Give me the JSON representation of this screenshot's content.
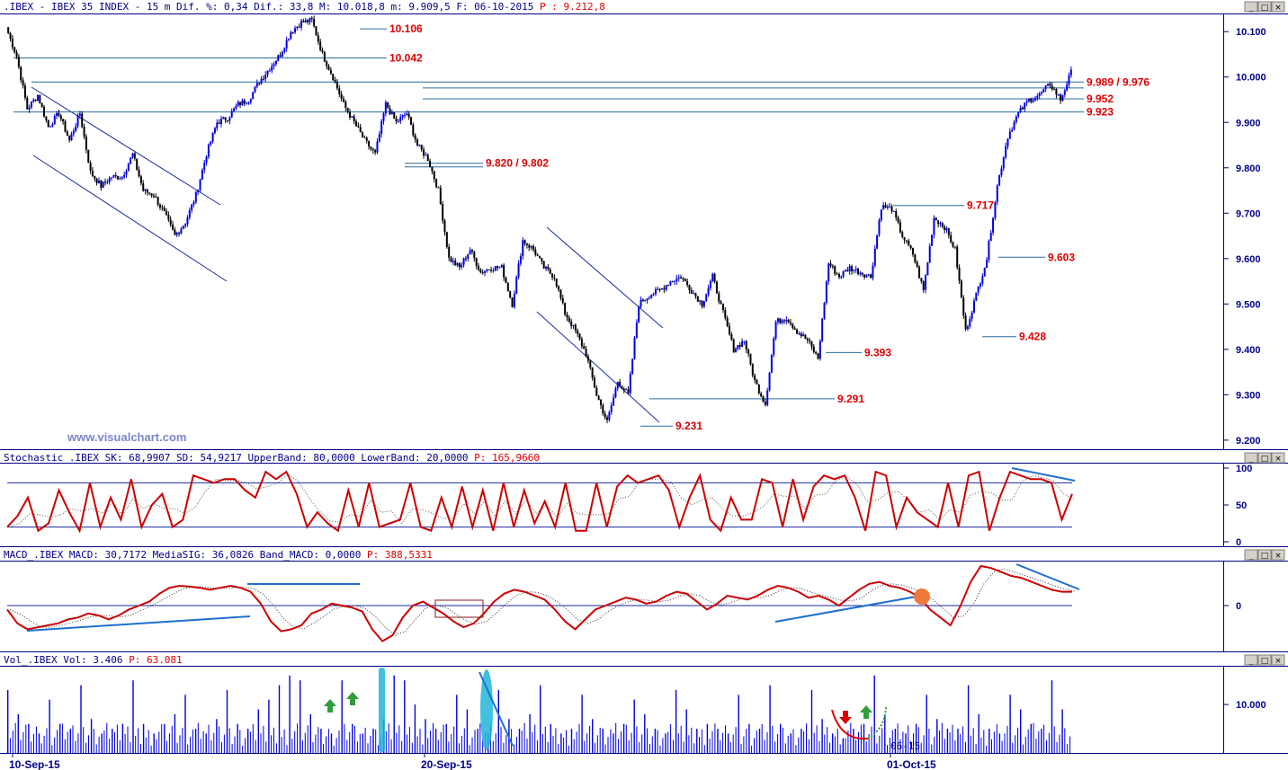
{
  "price_panel": {
    "header_parts": [
      ".IBEX - IBEX 35 INDEX -  15 m Dif. %: 0,34 Dif.: 33,8 M: 10.018,8 m: 9.909,5 F: 06-10-2015",
      " P : 9.212,8"
    ],
    "watermark": "www.visualchart.com"
  },
  "stoch_panel": {
    "header_parts": [
      "Stochastic_.IBEX SK: 68,9907 SD: 54,9217 UpperBand: 80,0000 LowerBand: 20,0000",
      " P: 165,9660"
    ]
  },
  "macd_panel": {
    "header_parts": [
      "MACD_.IBEX MACD: 30,7172 MediaSIG: 36,0826 Band_MACD: 0,0000",
      " P: 388,5331"
    ]
  },
  "vol_panel": {
    "header_parts": [
      "Vol_.IBEX Vol: 3.406",
      " P: 63.081"
    ],
    "corner_label": "06-15"
  },
  "window_buttons": [
    "_",
    "□",
    "×"
  ],
  "colors": {
    "up_bar": "#0000e0",
    "down_bar": "#000000",
    "level_text": "#e00000",
    "axis_text": "#00008b",
    "stoch_line": "#cc0000",
    "macd_line": "#cc0000",
    "trendline": "#1f6fd1",
    "volume": "#0000e0",
    "highlight": "#22b5d8"
  },
  "chart_data": [
    {
      "type": "candlestick",
      "title": ".IBEX - IBEX 35 INDEX - 15 m",
      "y_ticks": [
        "10.100",
        "10.000",
        "9.900",
        "9.800",
        "9.700",
        "9.600",
        "9.500",
        "9.400",
        "9.300",
        "9.200"
      ],
      "x_ticks": [
        "10-Sep-15",
        "20-Sep-15",
        "01-Oct-15"
      ],
      "ylim": [
        9180,
        10140
      ],
      "levels": [
        {
          "label": "10.106",
          "value": 10106
        },
        {
          "label": "10.042",
          "value": 10042
        },
        {
          "label": "9.989 / 9.976",
          "value": 9989
        },
        {
          "label": "9.952",
          "value": 9952
        },
        {
          "label": "9.923",
          "value": 9923
        },
        {
          "label": "9.820 / 9.802",
          "value": 9810
        },
        {
          "label": "9.717",
          "value": 9717
        },
        {
          "label": "9.603",
          "value": 9603
        },
        {
          "label": "9.428",
          "value": 9428
        },
        {
          "label": "9.393",
          "value": 9393
        },
        {
          "label": "9.291",
          "value": 9291
        },
        {
          "label": "9.231",
          "value": 9231
        }
      ],
      "series": [
        {
          "values": [
            10110,
            10045,
            9930,
            9960,
            9890,
            9920,
            9860,
            9920,
            9790,
            9760,
            9780,
            9780,
            9830,
            9750,
            9740,
            9700,
            9650,
            9680,
            9740,
            9830,
            9900,
            9910,
            9940,
            9950,
            9990,
            10020,
            10050,
            10100,
            10120,
            10125,
            10050,
            10000,
            9940,
            9900,
            9860,
            9830,
            9940,
            9900,
            9920,
            9850,
            9820,
            9750,
            9600,
            9580,
            9620,
            9570,
            9580,
            9580,
            9500,
            9640,
            9620,
            9580,
            9560,
            9480,
            9440,
            9390,
            9300,
            9240,
            9330,
            9300,
            9500,
            9520,
            9530,
            9550,
            9560,
            9530,
            9500,
            9560,
            9480,
            9400,
            9420,
            9330,
            9280,
            9460,
            9470,
            9440,
            9420,
            9380,
            9590,
            9560,
            9580,
            9570,
            9560,
            9715,
            9710,
            9650,
            9610,
            9530,
            9690,
            9670,
            9620,
            9440,
            9520,
            9600,
            9760,
            9870,
            9920,
            9950,
            9960,
            9985,
            9950,
            10010
          ]
        }
      ]
    },
    {
      "type": "line",
      "title": "Stochastic_.IBEX",
      "y_ticks": [
        "100",
        "50",
        "0"
      ],
      "ylim": [
        0,
        100
      ],
      "bands": [
        80,
        20
      ],
      "series": [
        {
          "name": "SK",
          "values": [
            20,
            35,
            60,
            15,
            25,
            70,
            40,
            15,
            80,
            20,
            60,
            30,
            85,
            20,
            50,
            65,
            20,
            30,
            90,
            85,
            80,
            85,
            85,
            70,
            60,
            95,
            85,
            95,
            65,
            20,
            40,
            25,
            15,
            70,
            20,
            80,
            20,
            25,
            30,
            80,
            20,
            15,
            60,
            20,
            75,
            20,
            70,
            15,
            80,
            20,
            70,
            25,
            55,
            20,
            80,
            15,
            15,
            80,
            20,
            75,
            90,
            80,
            85,
            90,
            70,
            20,
            60,
            90,
            30,
            15,
            60,
            30,
            30,
            85,
            80,
            20,
            85,
            30,
            75,
            90,
            85,
            90,
            60,
            15,
            95,
            90,
            20,
            60,
            40,
            30,
            20,
            80,
            20,
            90,
            95,
            15,
            60,
            95,
            90,
            85,
            85,
            80,
            30,
            65
          ]
        }
      ]
    },
    {
      "type": "line",
      "title": "MACD_.IBEX",
      "y_ticks": [
        "0"
      ],
      "zero_line": 0,
      "ylim": [
        -100,
        100
      ],
      "series": [
        {
          "name": "MACD",
          "values": [
            -10,
            -45,
            -60,
            -55,
            -50,
            -45,
            -35,
            -30,
            -20,
            -25,
            -35,
            -25,
            -10,
            0,
            10,
            30,
            45,
            50,
            48,
            45,
            40,
            45,
            50,
            45,
            35,
            5,
            -40,
            -65,
            -60,
            -50,
            -20,
            -10,
            5,
            0,
            -5,
            -15,
            -60,
            -90,
            -75,
            -30,
            0,
            10,
            -5,
            -20,
            -40,
            -55,
            -45,
            -20,
            10,
            30,
            40,
            35,
            25,
            15,
            -10,
            -40,
            -60,
            -35,
            -10,
            0,
            10,
            20,
            15,
            5,
            10,
            25,
            35,
            30,
            10,
            -10,
            5,
            25,
            20,
            15,
            25,
            40,
            50,
            45,
            35,
            20,
            25,
            15,
            0,
            20,
            40,
            55,
            60,
            50,
            45,
            35,
            20,
            -10,
            -30,
            -50,
            0,
            60,
            100,
            95,
            85,
            75,
            70,
            60,
            50,
            40,
            35,
            35
          ]
        }
      ]
    },
    {
      "type": "bar",
      "title": "Vol_.IBEX",
      "y_ticks": [
        "10.000"
      ],
      "ylim": [
        0,
        18000
      ],
      "series": [
        {
          "name": "Vol",
          "values": [
            13000,
            8000,
            6000,
            4000,
            11000,
            6000,
            5000,
            14000,
            7000,
            4000,
            5000,
            6000,
            15000,
            6000,
            4000,
            6000,
            8000,
            12000,
            5000,
            4000,
            7000,
            13000,
            6000,
            5000,
            9000,
            11000,
            14000,
            16000,
            15000,
            8000,
            5000,
            4000,
            15000,
            6000,
            4000,
            5000,
            7000,
            16000,
            15000,
            10000,
            7000,
            5000,
            6000,
            12000,
            9000,
            5000,
            4000,
            13000,
            7000,
            5000,
            8000,
            14000,
            6000,
            4000,
            5000,
            12000,
            7000,
            5000,
            4000,
            6000,
            11000,
            8000,
            5000,
            4000,
            13000,
            9000,
            5000,
            6000,
            5000,
            4000,
            12000,
            6000,
            5000,
            14000,
            6000,
            4000,
            5000,
            13000,
            7000,
            4000,
            3000,
            5000,
            6000,
            16000,
            8000,
            5000,
            4000,
            6000,
            12000,
            7000,
            5000,
            5000,
            14000,
            8000,
            5000,
            4000,
            12000,
            9000,
            6000,
            5000,
            15000,
            9000
          ]
        }
      ]
    }
  ]
}
